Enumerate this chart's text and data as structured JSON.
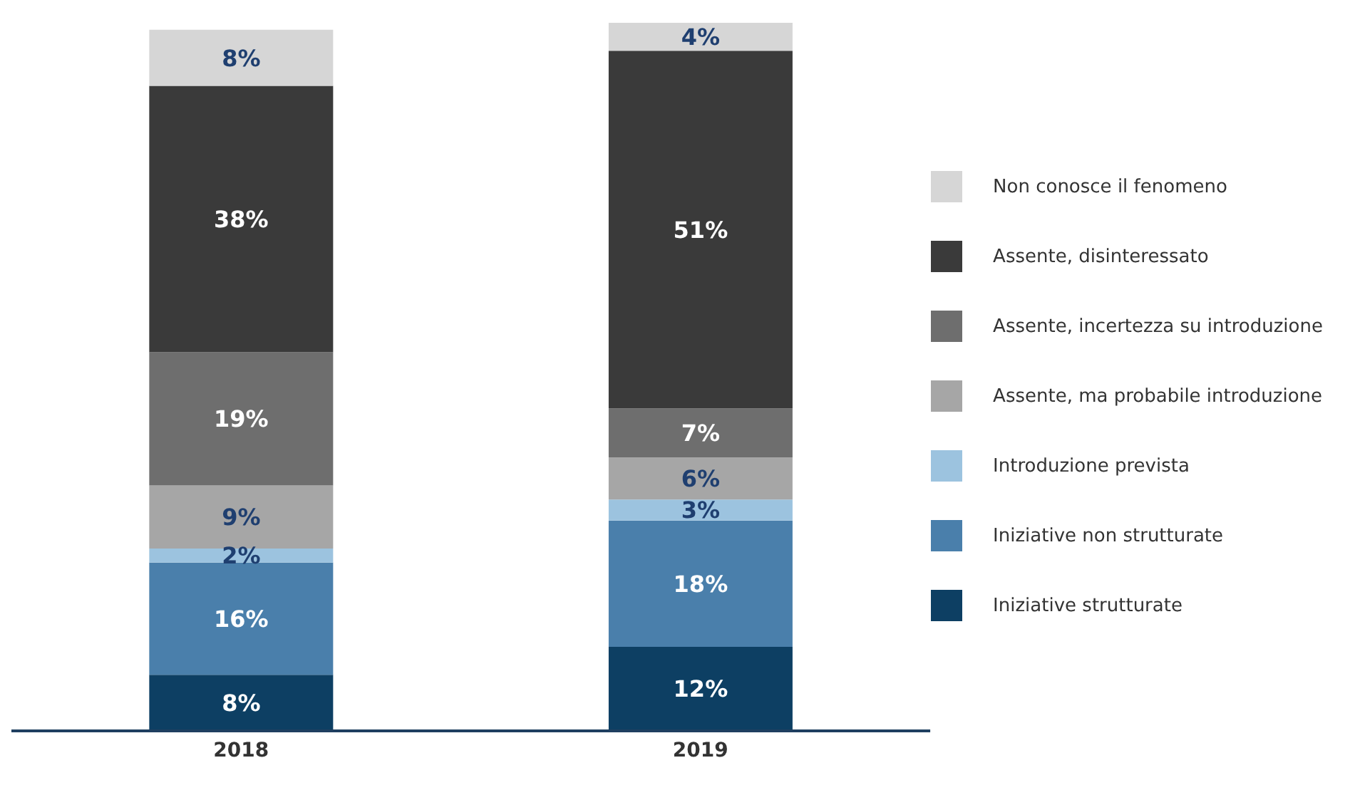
{
  "chart_data": {
    "type": "bar",
    "stacked": true,
    "categories": [
      "2018",
      "2019"
    ],
    "legend": "right",
    "series": [
      {
        "name": "Iniziative strutturate",
        "color": "#0d3f63",
        "values": [
          8,
          12
        ],
        "value_labels": [
          "8%",
          "12%"
        ]
      },
      {
        "name": "Iniziative non strutturate",
        "color": "#4a7fab",
        "values": [
          16,
          18
        ],
        "value_labels": [
          "16%",
          "18%"
        ]
      },
      {
        "name": "Introduzione prevista",
        "color": "#9cc3df",
        "values": [
          2,
          3
        ],
        "value_labels": [
          "2%",
          "3%"
        ]
      },
      {
        "name": "Assente, ma probabile introduzione",
        "color": "#a6a6a6",
        "values": [
          9,
          6
        ],
        "value_labels": [
          "9%",
          "6%"
        ]
      },
      {
        "name": "Assente, incertezza su introduzione",
        "color": "#6e6e6e",
        "values": [
          19,
          7
        ],
        "value_labels": [
          "19%",
          "7%"
        ]
      },
      {
        "name": "Assente, disinteressato",
        "color": "#3a3a3a",
        "values": [
          38,
          51
        ],
        "value_labels": [
          "38%",
          "51%"
        ]
      },
      {
        "name": "Non conosce il fenomeno",
        "color": "#d6d6d6",
        "values": [
          8,
          4
        ],
        "value_labels": [
          "8%",
          "4%"
        ]
      }
    ]
  }
}
